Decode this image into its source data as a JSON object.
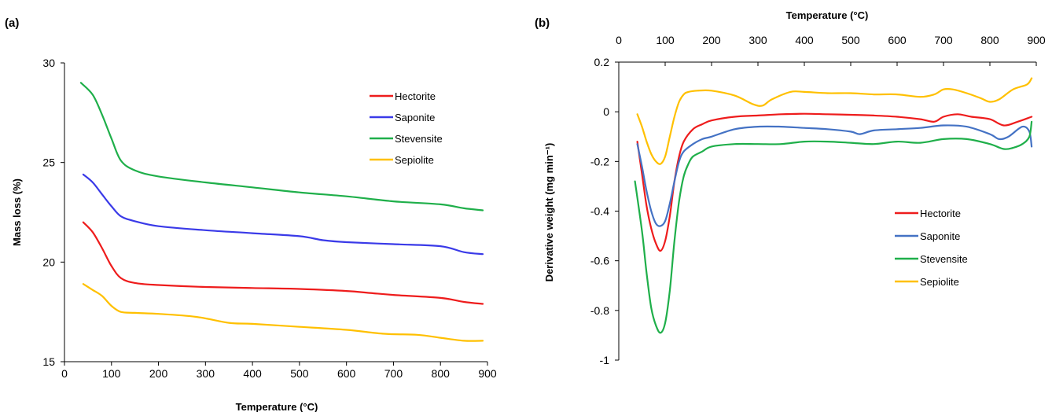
{
  "chart_data": [
    {
      "panel_label": "(a)",
      "type": "line",
      "xlabel": "Temperature (°C)",
      "ylabel": "Mass loss (%)",
      "xlim": [
        0,
        900
      ],
      "ylim": [
        15,
        30
      ],
      "xticks": [
        0,
        100,
        200,
        300,
        400,
        500,
        600,
        700,
        800,
        900
      ],
      "yticks": [
        15,
        20,
        25,
        30
      ],
      "legend_position": "right",
      "series": [
        {
          "name": "Hectorite",
          "color": "#ee1c1c",
          "x": [
            40,
            60,
            80,
            100,
            120,
            150,
            200,
            300,
            400,
            500,
            600,
            650,
            700,
            800,
            850,
            890
          ],
          "y": [
            22.0,
            21.5,
            20.7,
            19.8,
            19.2,
            18.95,
            18.85,
            18.75,
            18.7,
            18.65,
            18.55,
            18.45,
            18.35,
            18.2,
            18.0,
            17.9
          ]
        },
        {
          "name": "Saponite",
          "color": "#3a3ae8",
          "x": [
            40,
            60,
            80,
            100,
            120,
            150,
            200,
            300,
            400,
            500,
            550,
            600,
            700,
            800,
            850,
            890
          ],
          "y": [
            24.4,
            24.0,
            23.4,
            22.8,
            22.3,
            22.05,
            21.8,
            21.6,
            21.45,
            21.3,
            21.1,
            21.0,
            20.9,
            20.8,
            20.5,
            20.4
          ]
        },
        {
          "name": "Stevensite",
          "color": "#1faf4a",
          "x": [
            35,
            60,
            80,
            100,
            120,
            150,
            200,
            300,
            400,
            500,
            600,
            700,
            800,
            850,
            890
          ],
          "y": [
            29.0,
            28.4,
            27.4,
            26.2,
            25.1,
            24.6,
            24.3,
            24.0,
            23.75,
            23.5,
            23.3,
            23.05,
            22.9,
            22.7,
            22.6
          ]
        },
        {
          "name": "Sepiolite",
          "color": "#ffc000",
          "x": [
            40,
            60,
            80,
            100,
            120,
            150,
            200,
            280,
            350,
            400,
            500,
            600,
            680,
            750,
            800,
            850,
            890
          ],
          "y": [
            18.9,
            18.6,
            18.3,
            17.8,
            17.5,
            17.45,
            17.4,
            17.25,
            16.95,
            16.9,
            16.75,
            16.6,
            16.4,
            16.35,
            16.2,
            16.05,
            16.05
          ]
        }
      ]
    },
    {
      "panel_label": "(b)",
      "type": "line",
      "xlabel": "Temperature (°C)",
      "ylabel": "Derivative weight (mg min⁻¹)",
      "xlim": [
        0,
        900
      ],
      "ylim": [
        -1,
        0.2
      ],
      "xticks": [
        0,
        100,
        200,
        300,
        400,
        500,
        600,
        700,
        800,
        900
      ],
      "yticks": [
        -1,
        -0.8,
        -0.6,
        -0.4,
        -0.2,
        0,
        0.2
      ],
      "ytick_labels": [
        "-1",
        "-0.8",
        "-0.6",
        "-0.4",
        "-0.2",
        "0",
        "0.2"
      ],
      "x_axis_position": "top",
      "legend_position": "right",
      "series": [
        {
          "name": "Hectorite",
          "color": "#ee1c1c",
          "x": [
            40,
            50,
            60,
            70,
            80,
            90,
            100,
            110,
            120,
            130,
            140,
            160,
            180,
            200,
            250,
            300,
            350,
            400,
            450,
            500,
            550,
            600,
            650,
            680,
            700,
            730,
            760,
            800,
            830,
            860,
            890
          ],
          "y": [
            -0.12,
            -0.25,
            -0.38,
            -0.47,
            -0.53,
            -0.56,
            -0.52,
            -0.42,
            -0.28,
            -0.18,
            -0.12,
            -0.07,
            -0.05,
            -0.035,
            -0.02,
            -0.015,
            -0.01,
            -0.008,
            -0.01,
            -0.012,
            -0.015,
            -0.02,
            -0.03,
            -0.04,
            -0.02,
            -0.01,
            -0.02,
            -0.03,
            -0.055,
            -0.04,
            -0.02
          ]
        },
        {
          "name": "Saponite",
          "color": "#4472c4",
          "x": [
            40,
            50,
            60,
            70,
            80,
            90,
            100,
            110,
            120,
            130,
            140,
            160,
            180,
            200,
            250,
            300,
            350,
            400,
            450,
            500,
            520,
            550,
            600,
            650,
            700,
            750,
            800,
            820,
            840,
            870,
            885,
            890
          ],
          "y": [
            -0.13,
            -0.22,
            -0.32,
            -0.4,
            -0.45,
            -0.46,
            -0.44,
            -0.37,
            -0.28,
            -0.2,
            -0.16,
            -0.13,
            -0.11,
            -0.1,
            -0.07,
            -0.06,
            -0.06,
            -0.065,
            -0.07,
            -0.08,
            -0.09,
            -0.075,
            -0.07,
            -0.065,
            -0.055,
            -0.06,
            -0.09,
            -0.11,
            -0.1,
            -0.06,
            -0.08,
            -0.14
          ]
        },
        {
          "name": "Stevensite",
          "color": "#1faf4a",
          "x": [
            35,
            50,
            60,
            70,
            80,
            90,
            100,
            110,
            120,
            130,
            140,
            150,
            160,
            180,
            200,
            250,
            300,
            350,
            400,
            450,
            500,
            550,
            600,
            650,
            700,
            750,
            800,
            830,
            850,
            870,
            885,
            890
          ],
          "y": [
            -0.28,
            -0.48,
            -0.65,
            -0.79,
            -0.86,
            -0.89,
            -0.85,
            -0.72,
            -0.52,
            -0.36,
            -0.26,
            -0.21,
            -0.18,
            -0.16,
            -0.14,
            -0.13,
            -0.13,
            -0.13,
            -0.12,
            -0.12,
            -0.125,
            -0.13,
            -0.12,
            -0.125,
            -0.11,
            -0.11,
            -0.13,
            -0.15,
            -0.145,
            -0.13,
            -0.1,
            -0.04
          ]
        },
        {
          "name": "Sepiolite",
          "color": "#ffc000",
          "x": [
            40,
            50,
            60,
            70,
            80,
            90,
            100,
            110,
            120,
            130,
            140,
            150,
            170,
            200,
            250,
            290,
            310,
            330,
            370,
            400,
            450,
            500,
            550,
            600,
            650,
            680,
            700,
            720,
            750,
            780,
            800,
            820,
            850,
            880,
            890
          ],
          "y": [
            -0.01,
            -0.06,
            -0.12,
            -0.17,
            -0.2,
            -0.21,
            -0.18,
            -0.1,
            -0.02,
            0.04,
            0.07,
            0.08,
            0.085,
            0.085,
            0.065,
            0.03,
            0.025,
            0.05,
            0.08,
            0.08,
            0.075,
            0.075,
            0.07,
            0.07,
            0.06,
            0.07,
            0.09,
            0.09,
            0.075,
            0.055,
            0.04,
            0.05,
            0.09,
            0.11,
            0.135
          ]
        }
      ]
    }
  ]
}
